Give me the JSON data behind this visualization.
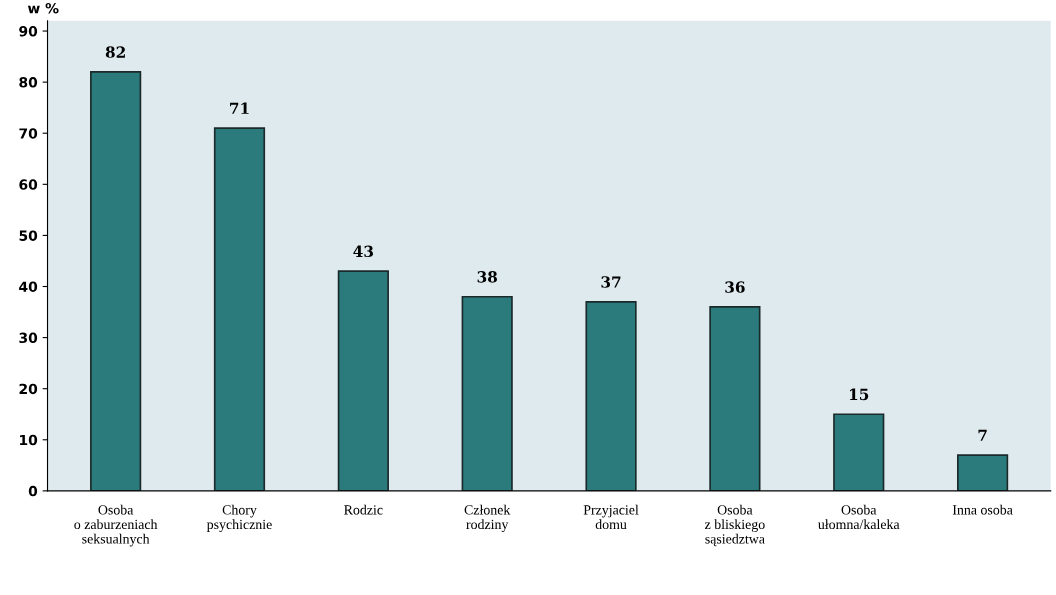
{
  "chart_data": {
    "type": "bar",
    "ylabel": "w %",
    "categories": [
      "Osoba\no zaburzeniach\nseksualnych",
      "Chory\npsychicznie",
      "Rodzic",
      "Członek\nrodziny",
      "Przyjaciel\ndomu",
      "Osoba\nz bliskiego\nsąsiedztwa",
      "Osoba\nułomna/kaleka",
      "Inna osoba"
    ],
    "values": [
      82,
      71,
      43,
      38,
      37,
      36,
      15,
      7
    ],
    "color": "#2b7a7c",
    "ylim": [
      0,
      92
    ],
    "yticks": [
      0,
      10,
      20,
      30,
      40,
      50,
      60,
      70,
      80,
      90
    ],
    "data_labels": true,
    "grid": false,
    "legend": false
  }
}
